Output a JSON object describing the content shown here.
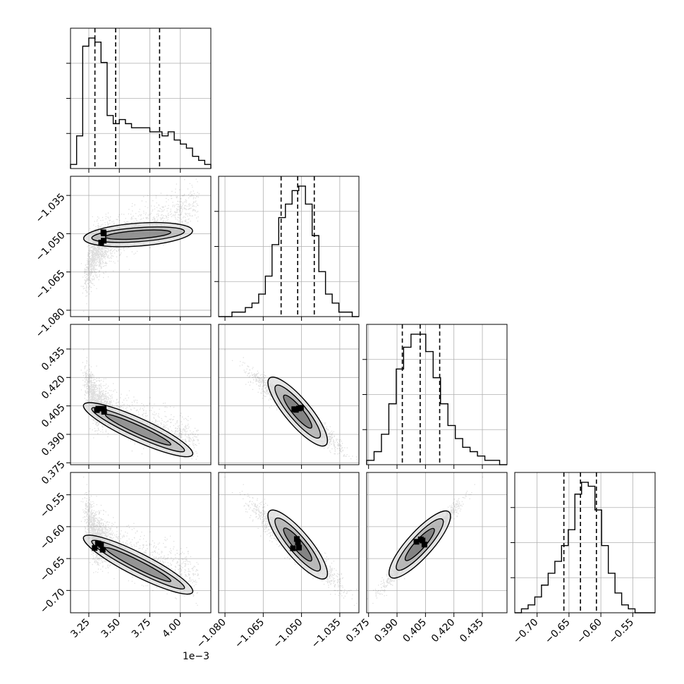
{
  "chart_data": {
    "type": "corner",
    "grid": true,
    "params": [
      {
        "range": [
          3.1,
          4.25
        ],
        "ticks": [
          3.25,
          3.5,
          3.75,
          4.0
        ],
        "tick_labels": [
          "3.25",
          "3.50",
          "3.75",
          "4.00"
        ],
        "offset_text": "1e−3",
        "quantiles": [
          3.3,
          3.47,
          3.83
        ],
        "mode": 3.33,
        "hist": [
          1,
          8,
          30,
          32,
          31,
          26,
          13,
          11,
          12,
          11,
          10,
          10,
          10,
          9,
          9,
          8,
          9,
          7,
          6,
          5,
          3,
          2,
          1
        ]
      },
      {
        "range": [
          -1.0825,
          -1.0275
        ],
        "ticks": [
          -1.08,
          -1.065,
          -1.05,
          -1.035
        ],
        "tick_labels": [
          "−1.080",
          "−1.065",
          "−1.050",
          "−1.035"
        ],
        "quantiles": [
          -1.058,
          -1.0515,
          -1.045
        ],
        "mode": -1.0515,
        "hist": [
          0,
          0,
          1,
          1,
          2,
          3,
          5,
          9,
          16,
          22,
          25,
          28,
          29,
          25,
          18,
          10,
          5,
          3,
          1,
          1,
          0
        ]
      },
      {
        "range": [
          0.374,
          0.448
        ],
        "ticks": [
          0.375,
          0.39,
          0.405,
          0.42,
          0.435
        ],
        "tick_labels": [
          "0.375",
          "0.390",
          "0.405",
          "0.420",
          "0.435"
        ],
        "quantiles": [
          0.3928,
          0.4022,
          0.4125
        ],
        "mode": 0.402,
        "hist": [
          1,
          3,
          7,
          14,
          22,
          27,
          30,
          30,
          26,
          20,
          14,
          9,
          6,
          4,
          3,
          2,
          1,
          1,
          0
        ]
      },
      {
        "range": [
          -0.735,
          -0.515
        ],
        "ticks": [
          -0.7,
          -0.65,
          -0.6,
          -0.55
        ],
        "tick_labels": [
          "−0.70",
          "−0.65",
          "−0.60",
          "−0.55"
        ],
        "quantiles": [
          -0.658,
          -0.632,
          -0.607
        ],
        "mode": -0.628,
        "hist": [
          0,
          1,
          2,
          4,
          7,
          10,
          13,
          17,
          21,
          30,
          33,
          32,
          26,
          17,
          10,
          5,
          2,
          1,
          0,
          0,
          0
        ]
      }
    ],
    "axis_label_offset": "1e−3"
  }
}
